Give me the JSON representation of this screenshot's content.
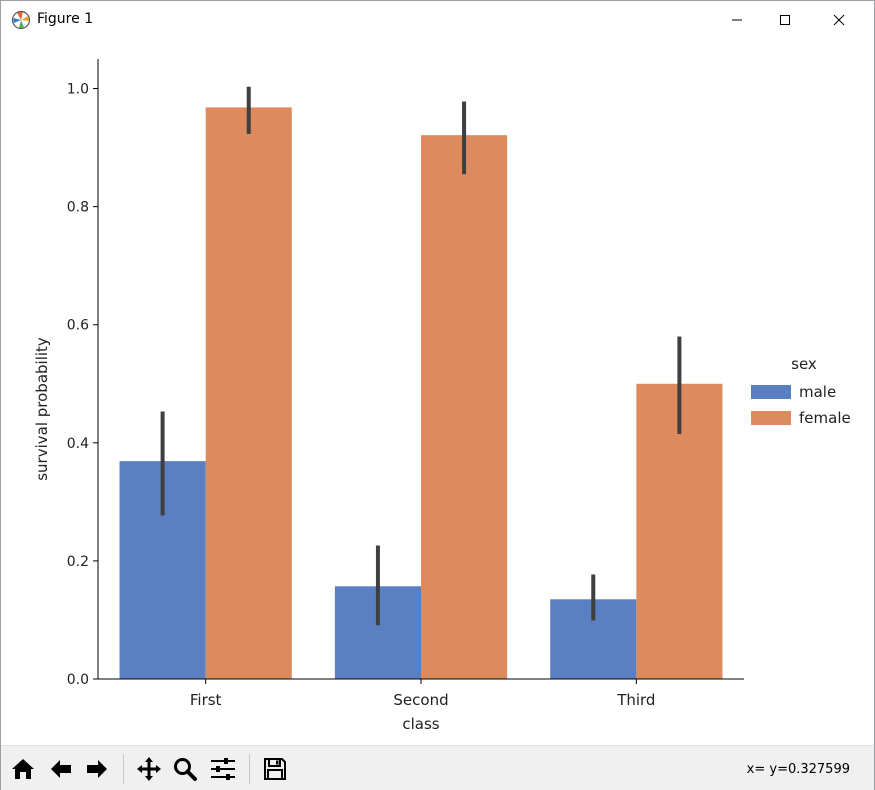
{
  "window": {
    "title": "Figure 1",
    "icons": [
      "matplotlib-app-icon",
      "minimize-icon",
      "maximize-icon",
      "close-icon"
    ]
  },
  "toolbar": {
    "buttons": [
      "home-icon",
      "back-arrow-icon",
      "forward-arrow-icon",
      "pan-icon",
      "zoom-icon",
      "configure-subplots-icon",
      "save-icon"
    ],
    "coords_x": "x=",
    "coords_y": "y=0.327599"
  },
  "chart_data": {
    "type": "bar",
    "title": "",
    "xlabel": "class",
    "ylabel": "survival probability",
    "categories": [
      "First",
      "Second",
      "Third"
    ],
    "series": [
      {
        "name": "male",
        "color": "#5a7fc2",
        "values": [
          0.369,
          0.157,
          0.135
        ],
        "ci_low": [
          0.277,
          0.091,
          0.099
        ],
        "ci_high": [
          0.453,
          0.226,
          0.177
        ]
      },
      {
        "name": "female",
        "color": "#dd8b5e",
        "values": [
          0.968,
          0.921,
          0.5
        ],
        "ci_low": [
          0.923,
          0.855,
          0.415
        ],
        "ci_high": [
          1.003,
          0.978,
          0.58
        ]
      }
    ],
    "ylim": [
      0.0,
      1.05
    ],
    "yticks": [
      0.0,
      0.2,
      0.4,
      0.6,
      0.8,
      1.0
    ],
    "ytick_labels": [
      "0.0",
      "0.2",
      "0.4",
      "0.6",
      "0.8",
      "1.0"
    ],
    "grid": false,
    "legend": {
      "title": "sex",
      "placement": "right",
      "entries": [
        "male",
        "female"
      ]
    },
    "errorbar_color": "#3f3f3f"
  }
}
